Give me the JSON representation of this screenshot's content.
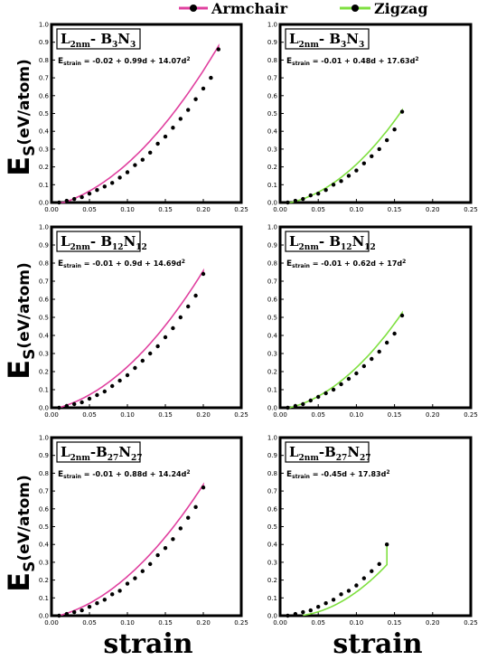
{
  "legend": {
    "armchair": {
      "label": "Armchair",
      "color": "#e0409f"
    },
    "zigzag": {
      "label": "Zigzag",
      "color": "#7fe040"
    }
  },
  "axes": {
    "xlabel": "strain",
    "ylabel_main": "E",
    "ylabel_sub": "S",
    "ylabel_unit": "(eV/atom)",
    "xticks": [
      "0.00",
      "0.05",
      "0.10",
      "0.15",
      "0.20",
      "0.25"
    ],
    "yticks": [
      "0.0",
      "0.1",
      "0.2",
      "0.3",
      "0.4",
      "0.5",
      "0.6",
      "0.7",
      "0.8",
      "0.9",
      "1.0"
    ]
  },
  "chart_data": [
    {
      "type": "line",
      "series_style": "armchair",
      "title_main": "L",
      "title_sub1": "2nm",
      "title_mid": "- B",
      "title_sub2": "3",
      "title_n": "N",
      "title_sub3": "3",
      "eq_prefix": "E",
      "eq_sub": "strain",
      "eq_body": " = -0.02 + 0.99d + 14.07d",
      "eq_sup": "2",
      "xlim": [
        0,
        0.25
      ],
      "ylim": [
        0,
        1.0
      ],
      "points": {
        "x": [
          0.01,
          0.02,
          0.03,
          0.04,
          0.05,
          0.06,
          0.07,
          0.08,
          0.09,
          0.1,
          0.11,
          0.12,
          0.13,
          0.14,
          0.15,
          0.16,
          0.17,
          0.18,
          0.19,
          0.2,
          0.21,
          0.22
        ],
        "y": [
          0.0,
          0.01,
          0.02,
          0.03,
          0.05,
          0.07,
          0.09,
          0.11,
          0.14,
          0.17,
          0.21,
          0.24,
          0.28,
          0.33,
          0.37,
          0.42,
          0.47,
          0.52,
          0.58,
          0.64,
          0.7,
          0.86
        ]
      },
      "fit": {
        "a": -0.02,
        "b": 0.99,
        "c": 14.07,
        "x_range": [
          0.01,
          0.22
        ]
      }
    },
    {
      "type": "line",
      "series_style": "zigzag",
      "title_main": "L",
      "title_sub1": "2nm",
      "title_mid": "- B",
      "title_sub2": "3",
      "title_n": "N",
      "title_sub3": "3",
      "eq_prefix": "E",
      "eq_sub": "strain",
      "eq_body": " = -0.01 + 0.48d + 17.63d",
      "eq_sup": "2",
      "xlim": [
        0,
        0.25
      ],
      "ylim": [
        0,
        1.0
      ],
      "points": {
        "x": [
          0.01,
          0.02,
          0.03,
          0.04,
          0.05,
          0.06,
          0.07,
          0.08,
          0.09,
          0.1,
          0.11,
          0.12,
          0.13,
          0.14,
          0.15,
          0.16
        ],
        "y": [
          0.0,
          0.01,
          0.02,
          0.04,
          0.05,
          0.07,
          0.1,
          0.12,
          0.15,
          0.18,
          0.22,
          0.26,
          0.3,
          0.35,
          0.41,
          0.51
        ]
      },
      "fit": {
        "a": -0.01,
        "b": 0.48,
        "c": 17.63,
        "x_range": [
          0.01,
          0.16
        ]
      }
    },
    {
      "type": "line",
      "series_style": "armchair",
      "title_main": "L",
      "title_sub1": "2nm",
      "title_mid": "- B",
      "title_sub2": "12",
      "title_n": "N",
      "title_sub3": "12",
      "eq_prefix": "E",
      "eq_sub": "strain",
      "eq_body": " = -0.01 + 0.9d + 14.69d",
      "eq_sup": "2",
      "xlim": [
        0,
        0.25
      ],
      "ylim": [
        0,
        1.0
      ],
      "points": {
        "x": [
          0.01,
          0.02,
          0.03,
          0.04,
          0.05,
          0.06,
          0.07,
          0.08,
          0.09,
          0.1,
          0.11,
          0.12,
          0.13,
          0.14,
          0.15,
          0.16,
          0.17,
          0.18,
          0.19,
          0.2
        ],
        "y": [
          0.0,
          0.01,
          0.02,
          0.03,
          0.05,
          0.07,
          0.09,
          0.12,
          0.15,
          0.18,
          0.22,
          0.26,
          0.3,
          0.34,
          0.39,
          0.44,
          0.5,
          0.56,
          0.62,
          0.74
        ]
      },
      "fit": {
        "a": -0.01,
        "b": 0.9,
        "c": 14.69,
        "x_range": [
          0.01,
          0.2
        ]
      }
    },
    {
      "type": "line",
      "series_style": "zigzag",
      "title_main": "L",
      "title_sub1": "2nm",
      "title_mid": "- B",
      "title_sub2": "12",
      "title_n": "N",
      "title_sub3": "12",
      "eq_prefix": "E",
      "eq_sub": "strain",
      "eq_body": " = -0.01 + 0.62d + 17d",
      "eq_sup": "2",
      "xlim": [
        0,
        0.25
      ],
      "ylim": [
        0,
        1.0
      ],
      "points": {
        "x": [
          0.01,
          0.02,
          0.03,
          0.04,
          0.05,
          0.06,
          0.07,
          0.08,
          0.09,
          0.1,
          0.11,
          0.12,
          0.13,
          0.14,
          0.15,
          0.16
        ],
        "y": [
          0.0,
          0.01,
          0.02,
          0.04,
          0.06,
          0.08,
          0.1,
          0.13,
          0.16,
          0.19,
          0.23,
          0.27,
          0.31,
          0.36,
          0.41,
          0.51
        ]
      },
      "fit": {
        "a": -0.01,
        "b": 0.62,
        "c": 17.0,
        "x_range": [
          0.01,
          0.16
        ]
      }
    },
    {
      "type": "line",
      "series_style": "armchair",
      "title_main": "L",
      "title_sub1": "2nm",
      "title_mid": "-B",
      "title_sub2": "27",
      "title_n": "N",
      "title_sub3": "27",
      "eq_prefix": "E",
      "eq_sub": "strain",
      "eq_body": " = -0.01 + 0.88d + 14.24d",
      "eq_sup": "2",
      "xlim": [
        0,
        0.25
      ],
      "ylim": [
        0,
        1.0
      ],
      "points": {
        "x": [
          0.01,
          0.02,
          0.03,
          0.04,
          0.05,
          0.06,
          0.07,
          0.08,
          0.09,
          0.1,
          0.11,
          0.12,
          0.13,
          0.14,
          0.15,
          0.16,
          0.17,
          0.18,
          0.19,
          0.2
        ],
        "y": [
          0.0,
          0.01,
          0.02,
          0.03,
          0.05,
          0.07,
          0.09,
          0.12,
          0.14,
          0.18,
          0.21,
          0.25,
          0.29,
          0.34,
          0.38,
          0.43,
          0.49,
          0.55,
          0.61,
          0.72
        ]
      },
      "fit": {
        "a": -0.01,
        "b": 0.88,
        "c": 14.24,
        "x_range": [
          0.01,
          0.2
        ]
      }
    },
    {
      "type": "line",
      "series_style": "zigzag",
      "title_main": "L",
      "title_sub1": "2nm",
      "title_mid": "-B",
      "title_sub2": "27",
      "title_n": "N",
      "title_sub3": "27",
      "eq_prefix": "E",
      "eq_sub": "strain",
      "eq_body": " = -0.45d + 17.83d",
      "eq_sup": "2",
      "xlim": [
        0,
        0.25
      ],
      "ylim": [
        0,
        1.0
      ],
      "points": {
        "x": [
          0.01,
          0.02,
          0.03,
          0.04,
          0.05,
          0.06,
          0.07,
          0.08,
          0.09,
          0.1,
          0.11,
          0.12,
          0.13,
          0.14
        ],
        "y": [
          0.0,
          0.01,
          0.02,
          0.03,
          0.05,
          0.07,
          0.09,
          0.12,
          0.14,
          0.17,
          0.21,
          0.25,
          0.29,
          0.4
        ]
      },
      "fit": {
        "a": 0.0,
        "b": -0.45,
        "c": 17.83,
        "x_range": [
          0.03,
          0.14
        ]
      }
    }
  ]
}
